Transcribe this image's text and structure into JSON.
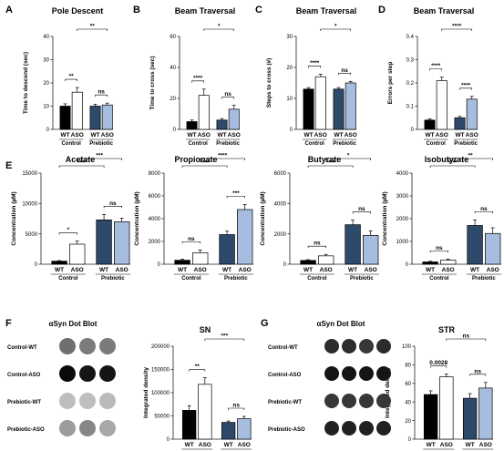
{
  "colors": {
    "wt": "#000000",
    "aso": "#ffffff",
    "pwt": "#2d4a6b",
    "paso": "#a7bde0",
    "axis": "#222222"
  },
  "panel_letters": [
    "A",
    "B",
    "C",
    "D",
    "E",
    "F",
    "G"
  ],
  "group_labels": [
    "Control",
    "Prebiotic"
  ],
  "chart_data": [
    {
      "id": "A",
      "type": "bar",
      "title": "Pole Descent",
      "ylabel": "Time to descend (sec)",
      "ylim": [
        0,
        40
      ],
      "yticks": [
        0,
        10,
        20,
        30,
        40
      ],
      "categories": [
        "WT",
        "ASO",
        "WT",
        "ASO"
      ],
      "values": [
        10,
        16,
        10,
        10.5
      ],
      "errors": [
        1,
        2,
        0.8,
        0.8
      ],
      "brackets": [
        {
          "from": 0,
          "to": 1,
          "label": "**"
        },
        {
          "from": 2,
          "to": 3,
          "label": "ns"
        },
        {
          "from": 1,
          "to": 3,
          "label": "**"
        }
      ]
    },
    {
      "id": "B",
      "type": "bar",
      "title": "Beam Traversal",
      "ylabel": "Time to cross (sec)",
      "ylim": [
        0,
        60
      ],
      "yticks": [
        0,
        20,
        40,
        60
      ],
      "categories": [
        "WT",
        "ASO",
        "WT",
        "ASO"
      ],
      "values": [
        5,
        22,
        6,
        13
      ],
      "errors": [
        1,
        4,
        1,
        2.5
      ],
      "brackets": [
        {
          "from": 0,
          "to": 1,
          "label": "****"
        },
        {
          "from": 2,
          "to": 3,
          "label": "ns"
        },
        {
          "from": 1,
          "to": 3,
          "label": "*"
        }
      ]
    },
    {
      "id": "C",
      "type": "bar",
      "title": "Beam Traversal",
      "ylabel": "Steps to cross (#)",
      "ylim": [
        0,
        30
      ],
      "yticks": [
        0,
        10,
        20,
        30
      ],
      "categories": [
        "WT",
        "ASO",
        "WT",
        "ASO"
      ],
      "values": [
        13,
        17,
        13,
        15
      ],
      "errors": [
        0.5,
        0.8,
        0.5,
        0.5
      ],
      "brackets": [
        {
          "from": 0,
          "to": 1,
          "label": "****"
        },
        {
          "from": 2,
          "to": 3,
          "label": "ns"
        },
        {
          "from": 1,
          "to": 3,
          "label": "*"
        }
      ]
    },
    {
      "id": "D",
      "type": "bar",
      "title": "Beam Traversal",
      "ylabel": "Errors per step",
      "ylim": [
        0,
        0.4
      ],
      "yticks": [
        0.0,
        0.1,
        0.2,
        0.3,
        0.4
      ],
      "categories": [
        "WT",
        "ASO",
        "WT",
        "ASO"
      ],
      "values": [
        0.04,
        0.21,
        0.05,
        0.13
      ],
      "errors": [
        0.005,
        0.015,
        0.006,
        0.012
      ],
      "brackets": [
        {
          "from": 0,
          "to": 1,
          "label": "****"
        },
        {
          "from": 2,
          "to": 3,
          "label": "****"
        },
        {
          "from": 1,
          "to": 3,
          "label": "****"
        }
      ]
    },
    {
      "id": "E1",
      "type": "bar",
      "title": "Acetate",
      "ylabel": "Concentration (µM)",
      "ylim": [
        0,
        15000
      ],
      "yticks": [
        0,
        5000,
        10000,
        15000
      ],
      "categories": [
        "WT",
        "ASO",
        "WT",
        "ASO"
      ],
      "values": [
        500,
        3300,
        7300,
        7000
      ],
      "errors": [
        100,
        500,
        900,
        600
      ],
      "brackets": [
        {
          "from": 0,
          "to": 1,
          "label": "*"
        },
        {
          "from": 2,
          "to": 3,
          "label": "ns"
        },
        {
          "from": 0,
          "to": 2,
          "label": "****"
        },
        {
          "from": 1,
          "to": 3,
          "label": "***"
        }
      ]
    },
    {
      "id": "E2",
      "type": "bar",
      "title": "Propionate",
      "ylabel": "Concentration (µM)",
      "ylim": [
        0,
        8000
      ],
      "yticks": [
        0,
        2000,
        4000,
        6000,
        8000
      ],
      "categories": [
        "WT",
        "ASO",
        "WT",
        "ASO"
      ],
      "values": [
        350,
        1000,
        2600,
        4800
      ],
      "errors": [
        80,
        250,
        300,
        450
      ],
      "brackets": [
        {
          "from": 0,
          "to": 1,
          "label": "ns"
        },
        {
          "from": 2,
          "to": 3,
          "label": "***"
        },
        {
          "from": 0,
          "to": 2,
          "label": "****"
        },
        {
          "from": 1,
          "to": 3,
          "label": "****"
        }
      ]
    },
    {
      "id": "E3",
      "type": "bar",
      "title": "Butyrate",
      "ylabel": "Concentration (µM)",
      "ylim": [
        0,
        6000
      ],
      "yticks": [
        0,
        2000,
        4000,
        6000
      ],
      "categories": [
        "WT",
        "ASO",
        "WT",
        "ASO"
      ],
      "values": [
        250,
        550,
        2600,
        1900
      ],
      "errors": [
        50,
        100,
        300,
        300
      ],
      "brackets": [
        {
          "from": 0,
          "to": 1,
          "label": "ns"
        },
        {
          "from": 2,
          "to": 3,
          "label": "ns"
        },
        {
          "from": 0,
          "to": 2,
          "label": "****"
        },
        {
          "from": 1,
          "to": 3,
          "label": "*"
        }
      ]
    },
    {
      "id": "E4",
      "type": "bar",
      "title": "Isobutyrate",
      "ylabel": "Concentration (µM)",
      "ylim": [
        0,
        4000
      ],
      "yticks": [
        0,
        1000,
        2000,
        3000,
        4000
      ],
      "categories": [
        "WT",
        "ASO",
        "WT",
        "ASO"
      ],
      "values": [
        100,
        180,
        1700,
        1350
      ],
      "errors": [
        30,
        50,
        250,
        250
      ],
      "brackets": [
        {
          "from": 0,
          "to": 1,
          "label": "ns"
        },
        {
          "from": 2,
          "to": 3,
          "label": "ns"
        },
        {
          "from": 0,
          "to": 2,
          "label": "****"
        },
        {
          "from": 1,
          "to": 3,
          "label": "**"
        }
      ]
    },
    {
      "id": "F",
      "type": "bar",
      "title": "SN",
      "ylabel": "Integrated density",
      "ylim": [
        0,
        200000
      ],
      "yticks": [
        0,
        50000,
        100000,
        150000,
        200000
      ],
      "categories": [
        "WT",
        "ASO",
        "WT",
        "ASO"
      ],
      "values": [
        62000,
        118000,
        36000,
        44000
      ],
      "errors": [
        10000,
        14000,
        3000,
        5000
      ],
      "brackets": [
        {
          "from": 0,
          "to": 1,
          "label": "**"
        },
        {
          "from": 2,
          "to": 3,
          "label": "ns"
        },
        {
          "from": 1,
          "to": 3,
          "label": "***"
        }
      ]
    },
    {
      "id": "G",
      "type": "bar",
      "title": "STR",
      "ylabel": "Integrated density",
      "ylim": [
        0,
        100
      ],
      "yticks": [
        0,
        20,
        40,
        60,
        80,
        100
      ],
      "categories": [
        "WT",
        "ASO",
        "WT",
        "ASO"
      ],
      "values": [
        48,
        67,
        44,
        55
      ],
      "errors": [
        4,
        3,
        5,
        6
      ],
      "brackets": [
        {
          "from": 0,
          "to": 1,
          "label": "0.0028"
        },
        {
          "from": 2,
          "to": 3,
          "label": "ns"
        },
        {
          "from": 1,
          "to": 3,
          "label": "ns"
        }
      ]
    }
  ],
  "dot_blots": [
    {
      "id": "F",
      "title": "αSyn Dot Blot",
      "rows": [
        {
          "label": "Control-WT",
          "intensity": [
            0.55,
            0.5,
            0.5
          ]
        },
        {
          "label": "Control-ASO",
          "intensity": [
            1.0,
            0.95,
            0.95
          ]
        },
        {
          "label": "Prebiotic-WT",
          "intensity": [
            0.2,
            0.2,
            0.22
          ]
        },
        {
          "label": "Prebiotic-ASO",
          "intensity": [
            0.35,
            0.45,
            0.3
          ]
        }
      ]
    },
    {
      "id": "G",
      "title": "αSyn Dot Blot",
      "rows": [
        {
          "label": "Control-WT",
          "intensity": [
            0.85,
            0.85,
            0.8,
            0.85
          ]
        },
        {
          "label": "Control-ASO",
          "intensity": [
            0.95,
            0.95,
            0.95,
            0.95
          ]
        },
        {
          "label": "Prebiotic-WT",
          "intensity": [
            0.8,
            0.8,
            0.8,
            0.8
          ]
        },
        {
          "label": "Prebiotic-ASO",
          "intensity": [
            0.9,
            0.9,
            0.9,
            0.9
          ]
        }
      ]
    }
  ]
}
